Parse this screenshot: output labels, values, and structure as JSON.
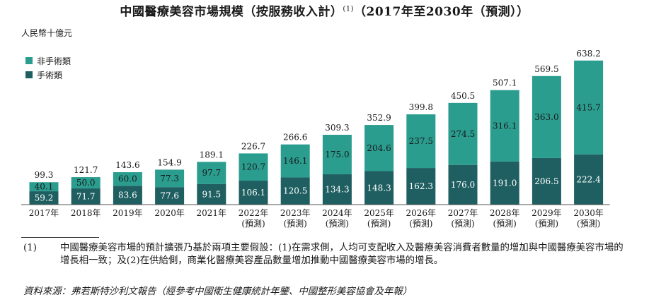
{
  "title": "中國醫療美容市場規模（按服務收入計）",
  "title_sup": "(1)",
  "title_tail": "（2017年至2030年（預測））",
  "unit": "人民幣十億元",
  "colors": {
    "non_surgical": "#2a9d8f",
    "surgical": "#1f5f61"
  },
  "chart_data": {
    "type": "bar",
    "stacked": true,
    "title": "中國醫療美容市場規模（按服務收入計）(1)（2017年至2030年（預測））",
    "ylabel": "人民幣十億元",
    "categories": [
      "2017年",
      "2018年",
      "2019年",
      "2020年",
      "2021年",
      "2022年(預測)",
      "2023年(預測)",
      "2024年(預測)",
      "2025年(預測)",
      "2026年(預測)",
      "2027年(預測)",
      "2028年(預測)",
      "2029年(預測)",
      "2030年(預測)"
    ],
    "category_lines": [
      [
        "2017年"
      ],
      [
        "2018年"
      ],
      [
        "2019年"
      ],
      [
        "2020年"
      ],
      [
        "2021年"
      ],
      [
        "2022年",
        "(預測)"
      ],
      [
        "2023年",
        "(預測)"
      ],
      [
        "2024年",
        "(預測)"
      ],
      [
        "2025年",
        "(預測)"
      ],
      [
        "2026年",
        "(預測)"
      ],
      [
        "2027年",
        "(預測)"
      ],
      [
        "2028年",
        "(預測)"
      ],
      [
        "2029年",
        "(預測)"
      ],
      [
        "2030年",
        "(預測)"
      ]
    ],
    "series": [
      {
        "name": "手術類",
        "values": [
          59.2,
          71.7,
          83.6,
          77.6,
          91.5,
          106.1,
          120.5,
          134.3,
          148.3,
          162.3,
          176.0,
          191.0,
          206.5,
          222.4
        ]
      },
      {
        "name": "非手術類",
        "values": [
          40.1,
          50.0,
          60.0,
          77.3,
          97.7,
          120.7,
          146.1,
          175.0,
          204.6,
          237.5,
          274.5,
          316.1,
          363.0,
          415.7
        ]
      }
    ],
    "totals": [
      99.3,
      121.7,
      143.6,
      154.9,
      189.1,
      226.7,
      266.6,
      309.3,
      352.9,
      399.8,
      450.5,
      507.1,
      569.5,
      638.2
    ],
    "ylim": [
      0,
      640
    ]
  },
  "legend": [
    {
      "label": "非手術類",
      "color_key": "non_surgical"
    },
    {
      "label": "手術類",
      "color_key": "surgical"
    }
  ],
  "note_number": "(1)",
  "note_text": "中國醫療美容市場的預計擴張乃基於兩項主要假設：(1)在需求側，人均可支配收入及醫療美容消費者數量的增加與中國醫療美容市場的增長相一致；及(2)在供給側，商業化醫療美容產品數量增加推動中國醫療美容市場的增長。",
  "source": "資料來源：弗若斯特沙利文報告（經參考中國衛生健康統計年鑒、中國整形美容協會及年報）"
}
